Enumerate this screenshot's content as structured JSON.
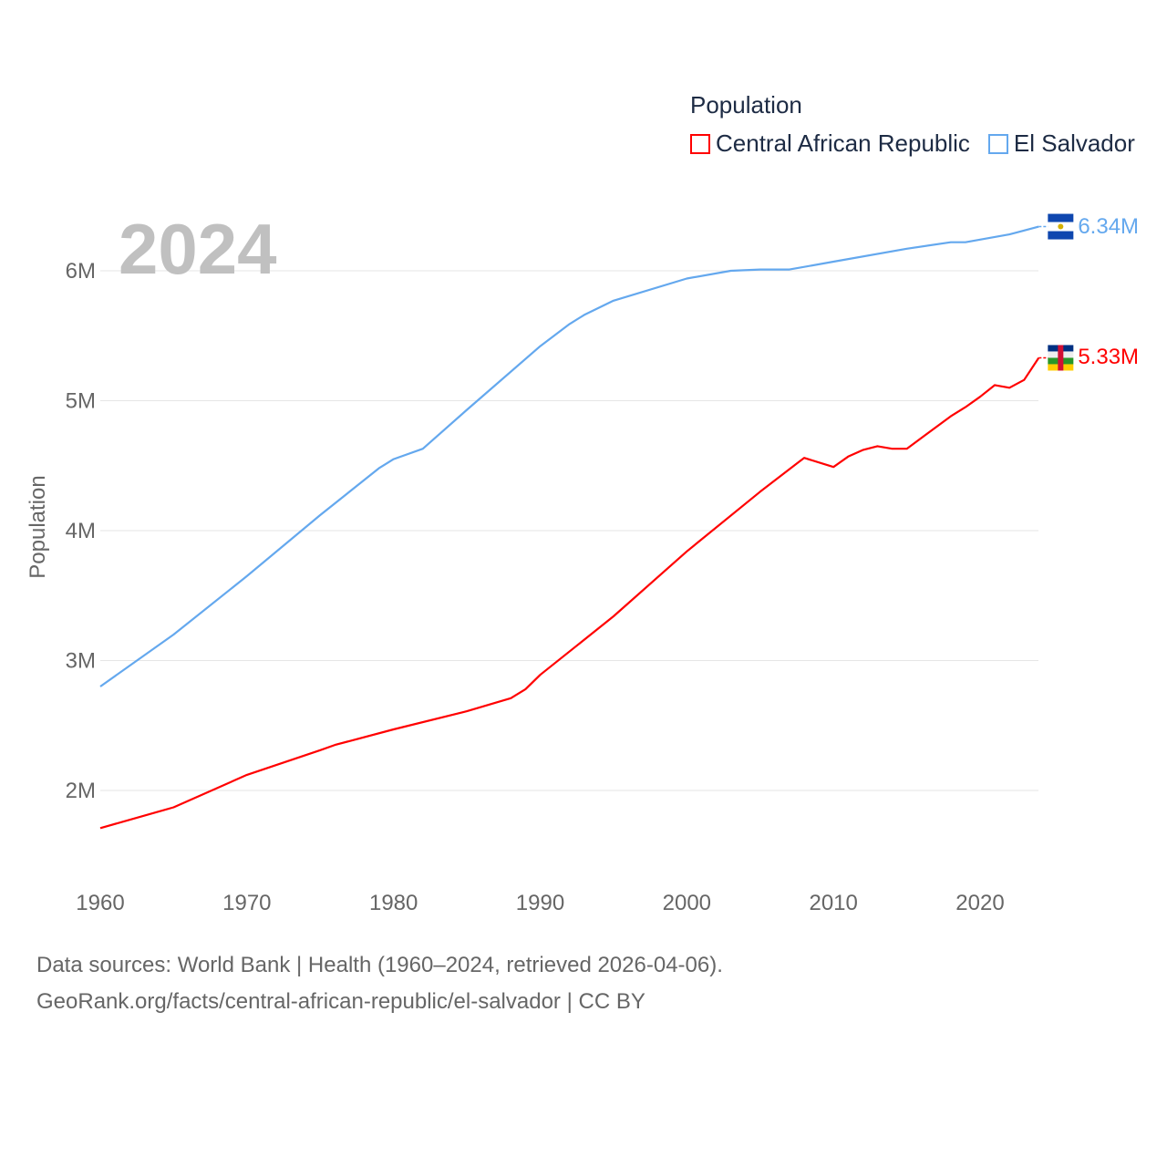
{
  "chart_data": {
    "type": "line",
    "title": "Population",
    "xlabel": "",
    "ylabel": "Population",
    "xlim": [
      1960,
      2024
    ],
    "ylim": [
      1.5,
      6.5
    ],
    "y_unit": "millions",
    "x_ticks": [
      "1960",
      "1970",
      "1980",
      "1990",
      "2000",
      "2010",
      "2020"
    ],
    "y_ticks": [
      {
        "v": 2,
        "label": "2M"
      },
      {
        "v": 3,
        "label": "3M"
      },
      {
        "v": 4,
        "label": "4M"
      },
      {
        "v": 5,
        "label": "5M"
      },
      {
        "v": 6,
        "label": "6M"
      }
    ],
    "grid": true,
    "legend_position": "top-right",
    "current_year": "2024",
    "series": [
      {
        "name": "Central African Republic",
        "color": "#ff0000",
        "end_label": "5.33M",
        "x": [
          1960,
          1965,
          1970,
          1975,
          1976,
          1980,
          1985,
          1988,
          1989,
          1990,
          1994,
          1995,
          2000,
          2005,
          2008,
          2010,
          2011,
          2012,
          2013,
          2014,
          2015,
          2018,
          2019,
          2020,
          2021,
          2022,
          2023,
          2024
        ],
        "y": [
          1.71,
          1.87,
          2.12,
          2.31,
          2.35,
          2.47,
          2.61,
          2.71,
          2.78,
          2.89,
          3.25,
          3.34,
          3.84,
          4.3,
          4.56,
          4.49,
          4.57,
          4.62,
          4.65,
          4.63,
          4.63,
          4.88,
          4.95,
          5.03,
          5.12,
          5.1,
          5.16,
          5.33
        ]
      },
      {
        "name": "El Salvador",
        "color": "#64a8ee",
        "end_label": "6.34M",
        "x": [
          1960,
          1965,
          1970,
          1975,
          1979,
          1980,
          1982,
          1985,
          1990,
          1992,
          1993,
          1995,
          2000,
          2003,
          2005,
          2007,
          2010,
          2015,
          2018,
          2019,
          2020,
          2022,
          2024
        ],
        "y": [
          2.8,
          3.2,
          3.65,
          4.12,
          4.48,
          4.55,
          4.63,
          4.93,
          5.42,
          5.59,
          5.66,
          5.77,
          5.94,
          6.0,
          6.01,
          6.01,
          6.07,
          6.17,
          6.22,
          6.22,
          6.24,
          6.28,
          6.34
        ]
      }
    ]
  },
  "footer": {
    "line1": "Data sources: World Bank | Health (1960–2024, retrieved 2026-04-06).",
    "line2": "GeoRank.org/facts/central-african-republic/el-salvador | CC BY"
  }
}
